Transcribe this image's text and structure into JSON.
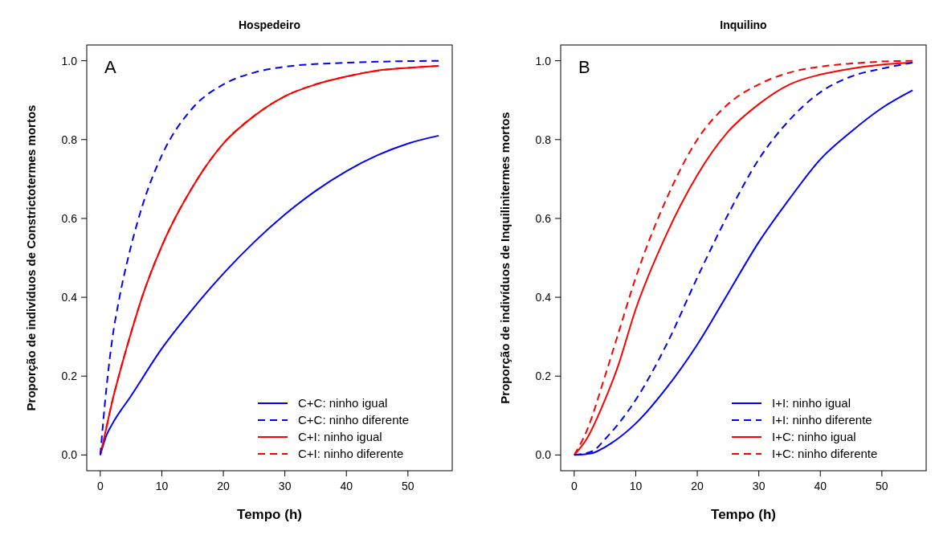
{
  "chart_data": [
    {
      "type": "line",
      "title": "Hospedeiro",
      "xlabel": "Tempo (h)",
      "ylabel": "Proporção de indivíduos de Constrictotermes mortos",
      "annotations": [
        "A"
      ],
      "xlim": [
        -2.2,
        57.2
      ],
      "ylim": [
        -0.04,
        1.04
      ],
      "xticks": [
        0,
        10,
        20,
        30,
        40,
        50
      ],
      "yticks": [
        {
          "value": 0,
          "label": "0.0"
        },
        {
          "value": 0.2,
          "label": "0.2"
        },
        {
          "value": 0.4,
          "label": "0.4"
        },
        {
          "value": 0.6,
          "label": "0.6"
        },
        {
          "value": 0.8,
          "label": "0.8"
        },
        {
          "value": 1,
          "label": "1.0"
        }
      ],
      "legend": "bottom right",
      "series": [
        {
          "name": "C+C: ninho igual",
          "color": "#0000ff",
          "line_style": "solid",
          "x": [
            0,
            1,
            2,
            5,
            10,
            15,
            20,
            25,
            30,
            35,
            40,
            45,
            50,
            55
          ],
          "values": [
            0,
            0.05,
            0.08,
            0.15,
            0.27,
            0.37,
            0.46,
            0.54,
            0.61,
            0.67,
            0.72,
            0.76,
            0.79,
            0.81
          ]
        },
        {
          "name": "C+C: ninho diferente",
          "color": "#0000ff",
          "line_style": "dashed",
          "x": [
            0,
            1,
            2,
            3,
            5,
            7,
            10,
            15,
            20,
            25,
            30,
            40,
            55
          ],
          "values": [
            0,
            0.17,
            0.3,
            0.39,
            0.53,
            0.64,
            0.76,
            0.88,
            0.94,
            0.97,
            0.985,
            0.995,
            1.0
          ]
        },
        {
          "name": "C+I: ninho igual",
          "color": "#ff0000",
          "line_style": "solid",
          "x": [
            0,
            1,
            2,
            3,
            5,
            7,
            10,
            15,
            20,
            25,
            30,
            35,
            40,
            45,
            50,
            55
          ],
          "values": [
            0,
            0.07,
            0.14,
            0.2,
            0.31,
            0.41,
            0.53,
            0.68,
            0.79,
            0.86,
            0.91,
            0.94,
            0.96,
            0.975,
            0.982,
            0.987
          ]
        },
        {
          "name": "C+I: ninho diferente",
          "color": "#ff0000",
          "line_style": "dashed",
          "x": [
            1,
            2,
            3,
            5,
            7,
            10,
            15,
            20,
            25,
            30,
            35,
            40,
            45,
            50,
            55
          ],
          "values": [
            0.07,
            0.14,
            0.2,
            0.31,
            0.41,
            0.53,
            0.68,
            0.79,
            0.86,
            0.91,
            0.94,
            0.96,
            0.975,
            0.982,
            0.987
          ]
        }
      ]
    },
    {
      "type": "line",
      "title": "Inquilino",
      "xlabel": "Tempo (h)",
      "ylabel": "Proporção de indivíduos de Inquilinitermes mortos",
      "annotations": [
        "B"
      ],
      "xlim": [
        -2.2,
        57.2
      ],
      "ylim": [
        -0.04,
        1.04
      ],
      "xticks": [
        0,
        10,
        20,
        30,
        40,
        50
      ],
      "yticks": [
        {
          "value": 0,
          "label": "0.0"
        },
        {
          "value": 0.2,
          "label": "0.2"
        },
        {
          "value": 0.4,
          "label": "0.4"
        },
        {
          "value": 0.6,
          "label": "0.6"
        },
        {
          "value": 0.8,
          "label": "0.8"
        },
        {
          "value": 1,
          "label": "1.0"
        }
      ],
      "legend": "bottom right",
      "series": [
        {
          "name": "I+I: ninho igual",
          "color": "#0000ff",
          "line_style": "solid",
          "x": [
            0,
            3,
            5,
            10,
            15,
            20,
            25,
            30,
            35,
            40,
            45,
            50,
            55
          ],
          "values": [
            0,
            0.005,
            0.02,
            0.08,
            0.17,
            0.28,
            0.41,
            0.54,
            0.65,
            0.75,
            0.82,
            0.88,
            0.925
          ]
        },
        {
          "name": "I+I: ninho diferente",
          "color": "#0000ff",
          "line_style": "dashed",
          "x": [
            0,
            3,
            5,
            10,
            15,
            20,
            25,
            30,
            35,
            40,
            45,
            50,
            55
          ],
          "values": [
            0,
            0.01,
            0.04,
            0.14,
            0.28,
            0.45,
            0.61,
            0.75,
            0.85,
            0.92,
            0.96,
            0.98,
            0.995
          ]
        },
        {
          "name": "I+C: ninho igual",
          "color": "#ff0000",
          "line_style": "solid",
          "x": [
            0,
            2,
            5,
            7,
            10,
            15,
            20,
            25,
            30,
            35,
            40,
            45,
            50,
            55
          ],
          "values": [
            0,
            0.04,
            0.14,
            0.22,
            0.37,
            0.56,
            0.71,
            0.82,
            0.89,
            0.94,
            0.965,
            0.98,
            0.99,
            0.995
          ]
        },
        {
          "name": "I+C: ninho diferente",
          "color": "#ff0000",
          "line_style": "dashed",
          "x": [
            0,
            2,
            5,
            7,
            10,
            15,
            20,
            25,
            30,
            35,
            40,
            45,
            50,
            55
          ],
          "values": [
            0,
            0.06,
            0.2,
            0.3,
            0.45,
            0.65,
            0.8,
            0.89,
            0.94,
            0.97,
            0.985,
            0.993,
            0.998,
            1.0
          ]
        }
      ]
    }
  ]
}
